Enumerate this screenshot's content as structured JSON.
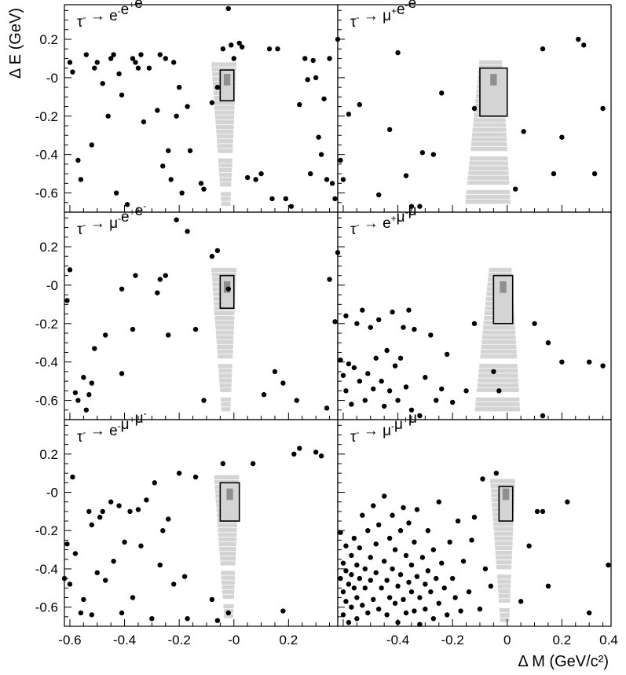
{
  "figure": {
    "xlabel": "Δ M (GeV/c²)",
    "ylabel": "Δ E (GeV)",
    "x_tick_labels": [
      "-0.6",
      "-0.4",
      "-0.2",
      "-0",
      "0.2",
      "-0.4",
      "-0.2",
      "0",
      "0.2",
      "0.4"
    ],
    "y_tick_labels": [
      "0.2",
      "-0",
      "-0.2",
      "-0.4",
      "-0.6"
    ],
    "marker_color": "#000000",
    "signal_colors": {
      "light": "#d4d4d4",
      "dark": "#8f8f8f"
    },
    "box_color": "#000000"
  },
  "chart_data": [
    {
      "type": "scatter",
      "title": "τ⁻ → e⁻e⁺e⁻",
      "xlim": [
        -0.62,
        0.38
      ],
      "ylim": [
        -0.7,
        0.38
      ],
      "signal_box": {
        "x": [
          -0.05,
          0.0
        ],
        "y": [
          -0.12,
          0.04
        ]
      },
      "points": [
        [
          -0.6,
          0.08
        ],
        [
          -0.59,
          0.03
        ],
        [
          -0.57,
          -0.43
        ],
        [
          -0.56,
          -0.53
        ],
        [
          -0.54,
          0.12
        ],
        [
          -0.52,
          -0.35
        ],
        [
          -0.51,
          0.05
        ],
        [
          -0.5,
          0.08
        ],
        [
          -0.48,
          -0.03
        ],
        [
          -0.46,
          -0.2
        ],
        [
          -0.45,
          0.1
        ],
        [
          -0.44,
          0.12
        ],
        [
          -0.43,
          -0.6
        ],
        [
          -0.42,
          0.02
        ],
        [
          -0.41,
          -0.09
        ],
        [
          -0.39,
          -0.66
        ],
        [
          -0.37,
          0.1
        ],
        [
          -0.36,
          0.08
        ],
        [
          -0.35,
          0.05
        ],
        [
          -0.34,
          0.12
        ],
        [
          -0.33,
          -0.23
        ],
        [
          -0.31,
          0.05
        ],
        [
          -0.28,
          -0.17
        ],
        [
          -0.27,
          0.12
        ],
        [
          -0.26,
          -0.46
        ],
        [
          -0.25,
          0.1
        ],
        [
          -0.24,
          -0.38
        ],
        [
          -0.23,
          -0.53
        ],
        [
          -0.22,
          0.08
        ],
        [
          -0.21,
          -0.2
        ],
        [
          -0.2,
          -0.05
        ],
        [
          -0.19,
          -0.6
        ],
        [
          -0.17,
          -0.15
        ],
        [
          -0.16,
          -0.38
        ],
        [
          -0.12,
          -0.55
        ],
        [
          -0.11,
          -0.58
        ],
        [
          -0.08,
          -0.13
        ],
        [
          -0.06,
          -0.05
        ],
        [
          -0.04,
          0.15
        ],
        [
          -0.02,
          0.36
        ],
        [
          -0.01,
          0.17
        ],
        [
          0.0,
          0.1
        ],
        [
          0.02,
          0.18
        ],
        [
          0.03,
          0.16
        ],
        [
          0.05,
          -0.52
        ],
        [
          0.08,
          -0.53
        ],
        [
          0.1,
          -0.5
        ],
        [
          0.13,
          0.15
        ],
        [
          0.14,
          -0.63
        ],
        [
          0.16,
          0.15
        ],
        [
          0.19,
          -0.63
        ],
        [
          0.21,
          -0.67
        ],
        [
          0.24,
          -0.14
        ],
        [
          0.26,
          0.1
        ],
        [
          0.27,
          -0.01
        ],
        [
          0.28,
          -0.5
        ],
        [
          0.29,
          0.09
        ],
        [
          0.3,
          0.0
        ],
        [
          0.31,
          -0.31
        ],
        [
          0.32,
          -0.4
        ],
        [
          0.33,
          -0.11
        ],
        [
          0.34,
          -0.53
        ],
        [
          0.35,
          0.1
        ],
        [
          0.36,
          -0.55
        ],
        [
          0.37,
          -0.63
        ],
        [
          0.38,
          0.2
        ]
      ]
    },
    {
      "type": "scatter",
      "title": "τ⁻ → μ⁺e⁻e⁻",
      "xlim": [
        -0.62,
        0.38
      ],
      "ylim": [
        -0.7,
        0.38
      ],
      "signal_box": {
        "x": [
          -0.1,
          0.0
        ],
        "y": [
          -0.2,
          0.05
        ]
      },
      "points": [
        [
          -0.61,
          -0.43
        ],
        [
          -0.6,
          -0.53
        ],
        [
          -0.58,
          -0.19
        ],
        [
          -0.54,
          -0.14
        ],
        [
          -0.47,
          -0.61
        ],
        [
          -0.43,
          -0.27
        ],
        [
          -0.4,
          0.13
        ],
        [
          -0.37,
          -0.51
        ],
        [
          -0.35,
          -0.67
        ],
        [
          -0.32,
          -0.67
        ],
        [
          -0.31,
          -0.39
        ],
        [
          -0.27,
          -0.4
        ],
        [
          -0.24,
          -0.08
        ],
        [
          -0.12,
          -0.16
        ],
        [
          0.03,
          -0.58
        ],
        [
          0.06,
          -0.28
        ],
        [
          0.13,
          0.15
        ],
        [
          0.17,
          -0.5
        ],
        [
          0.2,
          -0.31
        ],
        [
          0.26,
          0.2
        ],
        [
          0.28,
          0.17
        ],
        [
          0.32,
          -0.5
        ],
        [
          0.35,
          -0.16
        ]
      ]
    },
    {
      "type": "scatter",
      "title": "τ⁻ → μ⁻e⁺e⁻",
      "xlim": [
        -0.62,
        0.38
      ],
      "ylim": [
        -0.7,
        0.38
      ],
      "signal_box": {
        "x": [
          -0.05,
          0.0
        ],
        "y": [
          -0.12,
          0.05
        ]
      },
      "points": [
        [
          -0.61,
          -0.08
        ],
        [
          -0.6,
          0.08
        ],
        [
          -0.58,
          -0.56
        ],
        [
          -0.57,
          -0.6
        ],
        [
          -0.55,
          -0.48
        ],
        [
          -0.54,
          -0.65
        ],
        [
          -0.53,
          -0.57
        ],
        [
          -0.52,
          -0.51
        ],
        [
          -0.51,
          -0.33
        ],
        [
          -0.47,
          -0.26
        ],
        [
          -0.41,
          -0.46
        ],
        [
          -0.41,
          -0.02
        ],
        [
          -0.37,
          -0.23
        ],
        [
          -0.36,
          0.05
        ],
        [
          -0.28,
          -0.04
        ],
        [
          -0.27,
          0.03
        ],
        [
          -0.25,
          0.05
        ],
        [
          -0.24,
          -0.26
        ],
        [
          -0.21,
          0.34
        ],
        [
          -0.17,
          0.28
        ],
        [
          -0.14,
          -0.23
        ],
        [
          -0.11,
          -0.6
        ],
        [
          -0.08,
          0.15
        ],
        [
          -0.06,
          0.18
        ],
        [
          -0.02,
          -0.02
        ],
        [
          0.11,
          -0.57
        ],
        [
          0.15,
          -0.45
        ],
        [
          0.18,
          -0.51
        ],
        [
          0.23,
          -0.6
        ],
        [
          0.34,
          -0.64
        ],
        [
          0.35,
          0.03
        ],
        [
          0.37,
          -0.19
        ],
        [
          0.38,
          0.17
        ]
      ]
    },
    {
      "type": "scatter",
      "title": "τ⁻ → e⁺μ⁻μ⁻",
      "xlim": [
        -0.62,
        0.38
      ],
      "ylim": [
        -0.7,
        0.38
      ],
      "signal_box": {
        "x": [
          -0.05,
          0.02
        ],
        "y": [
          -0.2,
          0.05
        ]
      },
      "points": [
        [
          -0.61,
          -0.39
        ],
        [
          -0.6,
          -0.47
        ],
        [
          -0.59,
          -0.16
        ],
        [
          -0.59,
          -0.55
        ],
        [
          -0.58,
          -0.41
        ],
        [
          -0.57,
          -0.62
        ],
        [
          -0.56,
          -0.43
        ],
        [
          -0.55,
          -0.2
        ],
        [
          -0.54,
          -0.5
        ],
        [
          -0.53,
          -0.13
        ],
        [
          -0.52,
          -0.6
        ],
        [
          -0.51,
          -0.46
        ],
        [
          -0.5,
          -0.22
        ],
        [
          -0.49,
          -0.54
        ],
        [
          -0.48,
          -0.38
        ],
        [
          -0.47,
          -0.18
        ],
        [
          -0.46,
          -0.5
        ],
        [
          -0.45,
          -0.63
        ],
        [
          -0.44,
          -0.34
        ],
        [
          -0.43,
          -0.55
        ],
        [
          -0.42,
          -0.14
        ],
        [
          -0.41,
          -0.42
        ],
        [
          -0.4,
          -0.6
        ],
        [
          -0.39,
          -0.38
        ],
        [
          -0.38,
          -0.22
        ],
        [
          -0.37,
          -0.53
        ],
        [
          -0.36,
          -0.13
        ],
        [
          -0.35,
          -0.65
        ],
        [
          -0.34,
          -0.23
        ],
        [
          -0.32,
          -0.68
        ],
        [
          -0.3,
          -0.48
        ],
        [
          -0.28,
          -0.26
        ],
        [
          -0.26,
          -0.6
        ],
        [
          -0.24,
          -0.54
        ],
        [
          -0.22,
          -0.36
        ],
        [
          -0.2,
          -0.61
        ],
        [
          -0.15,
          -0.55
        ],
        [
          -0.12,
          -0.2
        ],
        [
          -0.05,
          -0.45
        ],
        [
          -0.03,
          -0.55
        ],
        [
          0.1,
          -0.2
        ],
        [
          0.13,
          -0.68
        ],
        [
          0.15,
          -0.3
        ],
        [
          0.2,
          -0.4
        ],
        [
          0.3,
          -0.4
        ],
        [
          0.35,
          -0.42
        ]
      ]
    },
    {
      "type": "scatter",
      "title": "τ⁻ → e⁻μ⁺μ⁻",
      "xlim": [
        -0.62,
        0.38
      ],
      "ylim": [
        -0.7,
        0.38
      ],
      "signal_box": {
        "x": [
          -0.05,
          0.02
        ],
        "y": [
          -0.15,
          0.05
        ]
      },
      "points": [
        [
          -0.62,
          -0.45
        ],
        [
          -0.61,
          -0.27
        ],
        [
          -0.6,
          -0.48
        ],
        [
          -0.59,
          0.08
        ],
        [
          -0.58,
          -0.32
        ],
        [
          -0.56,
          -0.63
        ],
        [
          -0.55,
          -0.56
        ],
        [
          -0.53,
          -0.1
        ],
        [
          -0.52,
          -0.17
        ],
        [
          -0.52,
          -0.64
        ],
        [
          -0.5,
          -0.42
        ],
        [
          -0.49,
          -0.13
        ],
        [
          -0.48,
          -0.1
        ],
        [
          -0.47,
          -0.46
        ],
        [
          -0.45,
          -0.05
        ],
        [
          -0.44,
          -0.36
        ],
        [
          -0.42,
          -0.07
        ],
        [
          -0.41,
          -0.63
        ],
        [
          -0.4,
          -0.26
        ],
        [
          -0.38,
          -0.1
        ],
        [
          -0.37,
          -0.55
        ],
        [
          -0.35,
          -0.09
        ],
        [
          -0.34,
          -0.28
        ],
        [
          -0.32,
          -0.04
        ],
        [
          -0.3,
          -0.66
        ],
        [
          -0.29,
          0.05
        ],
        [
          -0.27,
          -0.38
        ],
        [
          -0.26,
          -0.2
        ],
        [
          -0.24,
          -0.14
        ],
        [
          -0.22,
          -0.48
        ],
        [
          -0.2,
          0.1
        ],
        [
          -0.18,
          -0.44
        ],
        [
          -0.17,
          -0.66
        ],
        [
          -0.14,
          0.08
        ],
        [
          -0.08,
          -0.56
        ],
        [
          -0.06,
          -0.67
        ],
        [
          -0.04,
          0.15
        ],
        [
          -0.02,
          -0.63
        ],
        [
          0.07,
          0.15
        ],
        [
          0.18,
          -0.62
        ],
        [
          0.22,
          0.2
        ],
        [
          0.24,
          0.23
        ],
        [
          0.3,
          0.21
        ],
        [
          0.32,
          0.19
        ]
      ]
    },
    {
      "type": "scatter",
      "title": "τ⁻ → μ⁻μ⁺μ⁻",
      "xlim": [
        -0.62,
        0.38
      ],
      "ylim": [
        -0.7,
        0.38
      ],
      "signal_box": {
        "x": [
          -0.03,
          0.02
        ],
        "y": [
          -0.15,
          0.03
        ]
      },
      "points": [
        [
          -0.61,
          -0.21
        ],
        [
          -0.61,
          -0.45
        ],
        [
          -0.6,
          -0.37
        ],
        [
          -0.6,
          -0.52
        ],
        [
          -0.6,
          -0.64
        ],
        [
          -0.59,
          -0.28
        ],
        [
          -0.59,
          -0.41
        ],
        [
          -0.59,
          -0.57
        ],
        [
          -0.58,
          -0.48
        ],
        [
          -0.58,
          -0.68
        ],
        [
          -0.57,
          -0.33
        ],
        [
          -0.57,
          -0.43
        ],
        [
          -0.57,
          -0.6
        ],
        [
          -0.56,
          -0.5
        ],
        [
          -0.56,
          -0.24
        ],
        [
          -0.55,
          -0.38
        ],
        [
          -0.55,
          -0.55
        ],
        [
          -0.55,
          -0.66
        ],
        [
          -0.54,
          -0.45
        ],
        [
          -0.54,
          -0.29
        ],
        [
          -0.53,
          -0.12
        ],
        [
          -0.53,
          -0.59
        ],
        [
          -0.52,
          -0.4
        ],
        [
          -0.52,
          -0.5
        ],
        [
          -0.51,
          -0.2
        ],
        [
          -0.51,
          -0.63
        ],
        [
          -0.5,
          -0.34
        ],
        [
          -0.5,
          -0.46
        ],
        [
          -0.49,
          -0.56
        ],
        [
          -0.49,
          -0.07
        ],
        [
          -0.48,
          -0.27
        ],
        [
          -0.48,
          -0.42
        ],
        [
          -0.47,
          -0.61
        ],
        [
          -0.47,
          -0.17
        ],
        [
          -0.46,
          -0.5
        ],
        [
          -0.45,
          -0.36
        ],
        [
          -0.45,
          -0.02
        ],
        [
          -0.44,
          -0.46
        ],
        [
          -0.44,
          -0.64
        ],
        [
          -0.43,
          -0.24
        ],
        [
          -0.43,
          -0.55
        ],
        [
          -0.42,
          -0.12
        ],
        [
          -0.42,
          -0.4
        ],
        [
          -0.41,
          -0.58
        ],
        [
          -0.41,
          -0.3
        ],
        [
          -0.4,
          -0.49
        ],
        [
          -0.4,
          -0.68
        ],
        [
          -0.39,
          -0.2
        ],
        [
          -0.39,
          -0.43
        ],
        [
          -0.38,
          -0.08
        ],
        [
          -0.38,
          -0.56
        ],
        [
          -0.37,
          -0.33
        ],
        [
          -0.37,
          -0.63
        ],
        [
          -0.36,
          -0.47
        ],
        [
          -0.36,
          -0.16
        ],
        [
          -0.35,
          -0.52
        ],
        [
          -0.35,
          -0.38
        ],
        [
          -0.34,
          -0.62
        ],
        [
          -0.34,
          -0.26
        ],
        [
          -0.33,
          -0.44
        ],
        [
          -0.33,
          -0.09
        ],
        [
          -0.32,
          -0.55
        ],
        [
          -0.32,
          -0.69
        ],
        [
          -0.31,
          -0.34
        ],
        [
          -0.3,
          -0.48
        ],
        [
          -0.3,
          -0.61
        ],
        [
          -0.29,
          -0.2
        ],
        [
          -0.29,
          -0.41
        ],
        [
          -0.28,
          -0.52
        ],
        [
          -0.27,
          -0.66
        ],
        [
          -0.27,
          -0.3
        ],
        [
          -0.26,
          -0.45
        ],
        [
          -0.25,
          -0.58
        ],
        [
          -0.25,
          -0.05
        ],
        [
          -0.24,
          -0.37
        ],
        [
          -0.23,
          -0.5
        ],
        [
          -0.22,
          -0.64
        ],
        [
          -0.21,
          -0.26
        ],
        [
          -0.2,
          -0.45
        ],
        [
          -0.19,
          -0.55
        ],
        [
          -0.18,
          -0.15
        ],
        [
          -0.17,
          -0.62
        ],
        [
          -0.16,
          -0.36
        ],
        [
          -0.14,
          -0.52
        ],
        [
          -0.13,
          -0.25
        ],
        [
          -0.12,
          -0.13
        ],
        [
          -0.1,
          -0.61
        ],
        [
          -0.09,
          0.07
        ],
        [
          -0.08,
          -0.4
        ],
        [
          -0.06,
          -0.49
        ],
        [
          -0.04,
          0.1
        ],
        [
          0.05,
          -0.57
        ],
        [
          0.08,
          -0.28
        ],
        [
          0.11,
          -0.1
        ],
        [
          0.13,
          -0.1
        ],
        [
          0.15,
          -0.49
        ],
        [
          0.22,
          -0.05
        ],
        [
          0.3,
          -0.63
        ],
        [
          0.37,
          -0.38
        ]
      ]
    }
  ]
}
